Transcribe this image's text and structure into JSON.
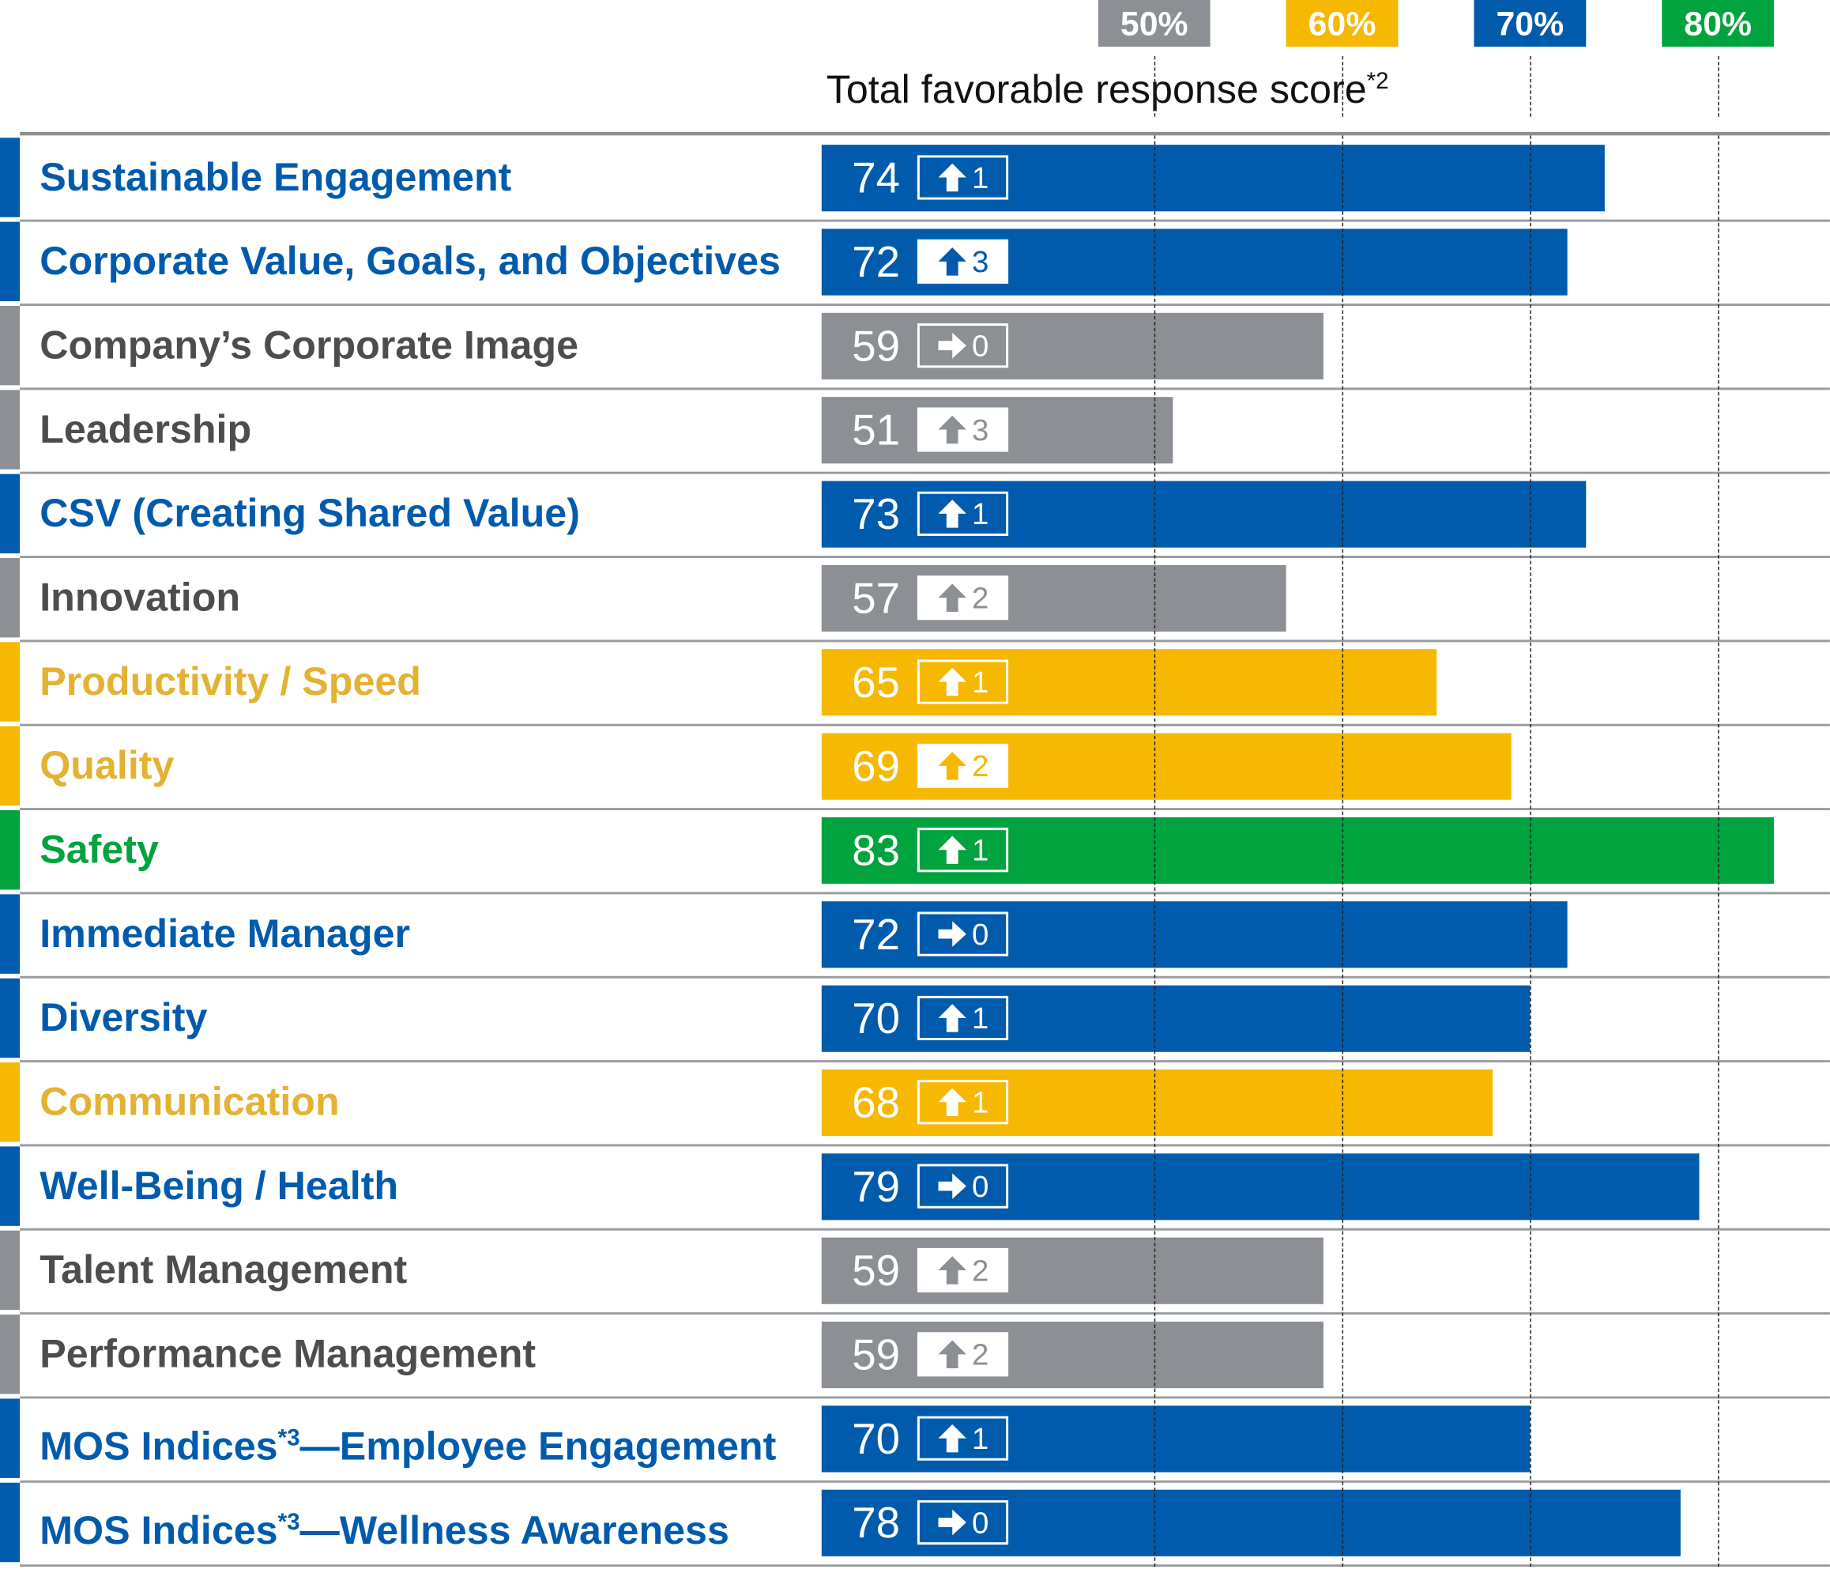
{
  "chart_data": {
    "type": "bar",
    "orientation": "horizontal",
    "title": "Total favorable response score",
    "title_footnote": "*2",
    "reference_lines": [
      {
        "label": "50%",
        "value": 50,
        "color": "#8c9094"
      },
      {
        "label": "60%",
        "value": 60,
        "color": "#f6b800"
      },
      {
        "label": "70%",
        "value": 70,
        "color": "#005bac"
      },
      {
        "label": "80%",
        "value": 80,
        "color": "#00a33e"
      }
    ],
    "colors": {
      "blue": "#005bac",
      "gray": "#8c9094",
      "yellow": "#f6b800",
      "green": "#00a33e"
    },
    "label_colors": {
      "blue": "#005bac",
      "gray": "#4d4d4d",
      "yellow": "#e3b232",
      "green": "#00a33e"
    },
    "grid": false,
    "rows": [
      {
        "label": "Sustainable Engagement",
        "value": 74,
        "change": 1,
        "trend": "up",
        "color": "blue",
        "badge_style": "outline"
      },
      {
        "label": "Corporate Value, Goals, and Objectives",
        "value": 72,
        "change": 3,
        "trend": "up",
        "color": "blue",
        "badge_style": "filled"
      },
      {
        "label": "Company’s Corporate Image",
        "value": 59,
        "change": 0,
        "trend": "flat",
        "color": "gray",
        "badge_style": "outline"
      },
      {
        "label": "Leadership",
        "value": 51,
        "change": 3,
        "trend": "up",
        "color": "gray",
        "badge_style": "filled"
      },
      {
        "label": "CSV (Creating Shared Value)",
        "value": 73,
        "change": 1,
        "trend": "up",
        "color": "blue",
        "badge_style": "outline"
      },
      {
        "label": "Innovation",
        "value": 57,
        "change": 2,
        "trend": "up",
        "color": "gray",
        "badge_style": "filled"
      },
      {
        "label": "Productivity / Speed",
        "value": 65,
        "change": 1,
        "trend": "up",
        "color": "yellow",
        "badge_style": "outline"
      },
      {
        "label": "Quality",
        "value": 69,
        "change": 2,
        "trend": "up",
        "color": "yellow",
        "badge_style": "filled"
      },
      {
        "label": "Safety",
        "value": 83,
        "change": 1,
        "trend": "up",
        "color": "green",
        "badge_style": "outline"
      },
      {
        "label": "Immediate Manager",
        "value": 72,
        "change": 0,
        "trend": "flat",
        "color": "blue",
        "badge_style": "outline"
      },
      {
        "label": "Diversity",
        "value": 70,
        "change": 1,
        "trend": "up",
        "color": "blue",
        "badge_style": "outline"
      },
      {
        "label": "Communication",
        "value": 68,
        "change": 1,
        "trend": "up",
        "color": "yellow",
        "badge_style": "outline"
      },
      {
        "label": "Well-Being / Health",
        "value": 79,
        "change": 0,
        "trend": "flat",
        "color": "blue",
        "badge_style": "outline"
      },
      {
        "label": "Talent Management",
        "value": 59,
        "change": 2,
        "trend": "up",
        "color": "gray",
        "badge_style": "filled"
      },
      {
        "label": "Performance Management",
        "value": 59,
        "change": 2,
        "trend": "up",
        "color": "gray",
        "badge_style": "filled"
      },
      {
        "label": "MOS Indices",
        "label_footnote": "*3",
        "label_suffix": "—Employee Engagement",
        "value": 70,
        "change": 1,
        "trend": "up",
        "color": "blue",
        "badge_style": "outline"
      },
      {
        "label": "MOS Indices",
        "label_footnote": "*3",
        "label_suffix": "—Wellness Awareness",
        "value": 78,
        "change": 0,
        "trend": "flat",
        "color": "blue",
        "badge_style": "outline"
      }
    ]
  }
}
